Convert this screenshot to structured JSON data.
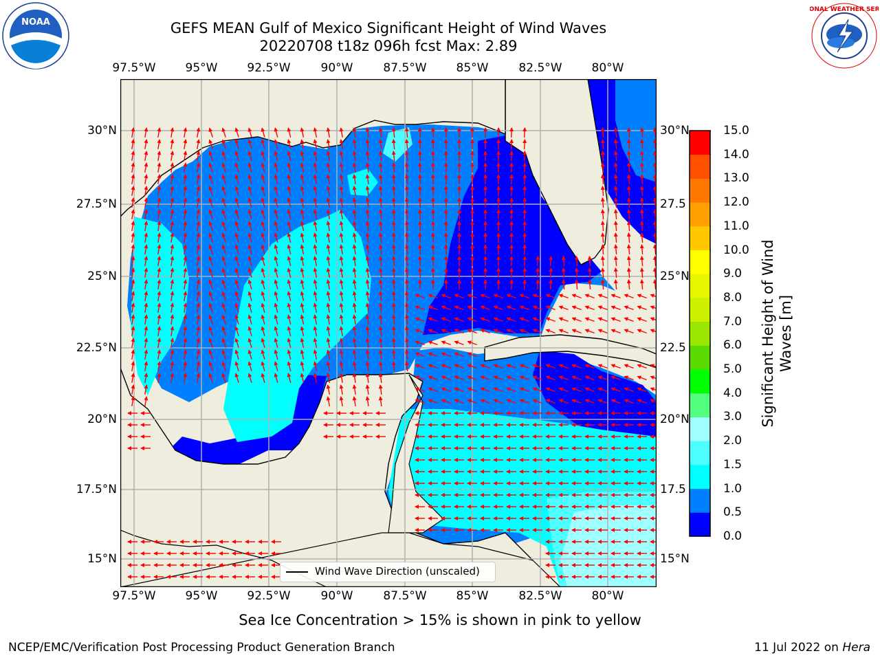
{
  "title_line1": "GEFS MEAN Gulf of Mexico Significant Height of Wind Waves",
  "title_line2": "20220708 t18z 096h fcst   Max: 2.89",
  "lon_labels": [
    "97.5°W",
    "95°W",
    "92.5°W",
    "90°W",
    "87.5°W",
    "85°W",
    "82.5°W",
    "80°W"
  ],
  "lat_labels": [
    "30°N",
    "27.5°N",
    "25°N",
    "22.5°N",
    "20°N",
    "17.5°N",
    "15°N"
  ],
  "right_lat_labels": [
    "30°N",
    "27.5",
    "25°N",
    "22.5",
    "20°N",
    "17.5",
    "15°N"
  ],
  "map": {
    "lon_range": [
      -98,
      -78.2
    ],
    "lat_range": [
      14,
      31.6
    ],
    "gridlines": true,
    "land_color": "#efedde",
    "shading_field": "Significant Height of Wind Waves",
    "vector_field": "Wind Wave Direction",
    "vector_color": "#ff0000"
  },
  "colorbar": {
    "label": "Significant Height of Wind Waves [m]",
    "ticks": [
      "15.0",
      "14.0",
      "13.0",
      "12.0",
      "11.0",
      "10.0",
      "9.0",
      "8.0",
      "7.0",
      "6.0",
      "5.0",
      "4.0",
      "3.0",
      "2.0",
      "1.5",
      "1.0",
      "0.5",
      "0.0"
    ],
    "colors": [
      "#0000ff",
      "#0080ff",
      "#00ffff",
      "#4dffff",
      "#a0ffff",
      "#53ff7f",
      "#00ff00",
      "#00dc00",
      "#5ada00",
      "#9ae600",
      "#ccf000",
      "#e6f500",
      "#ffff00",
      "#ffe600",
      "#ffc800",
      "#ffa000",
      "#ff7800",
      "#ff5000",
      "#ff2800",
      "#ff0000"
    ]
  },
  "chart_data": {
    "type": "heatmap",
    "variable": "Significant Height of Wind Waves",
    "units": "m",
    "max": 2.89,
    "levels": [
      0.0,
      0.5,
      1.0,
      1.5,
      2.0,
      3.0,
      4.0,
      5.0,
      6.0,
      7.0,
      8.0,
      9.0,
      10.0,
      11.0,
      12.0,
      13.0,
      14.0,
      15.0
    ]
  },
  "legend": {
    "text": "Wind Wave Direction (unscaled)"
  },
  "footer": {
    "note": "Sea Ice Concentration > 15% is shown in pink to yellow",
    "left": "NCEP/EMC/Verification Post Processing Product Generation Branch",
    "right_date": "11 Jul 2022 on",
    "right_machine": "Hera"
  }
}
